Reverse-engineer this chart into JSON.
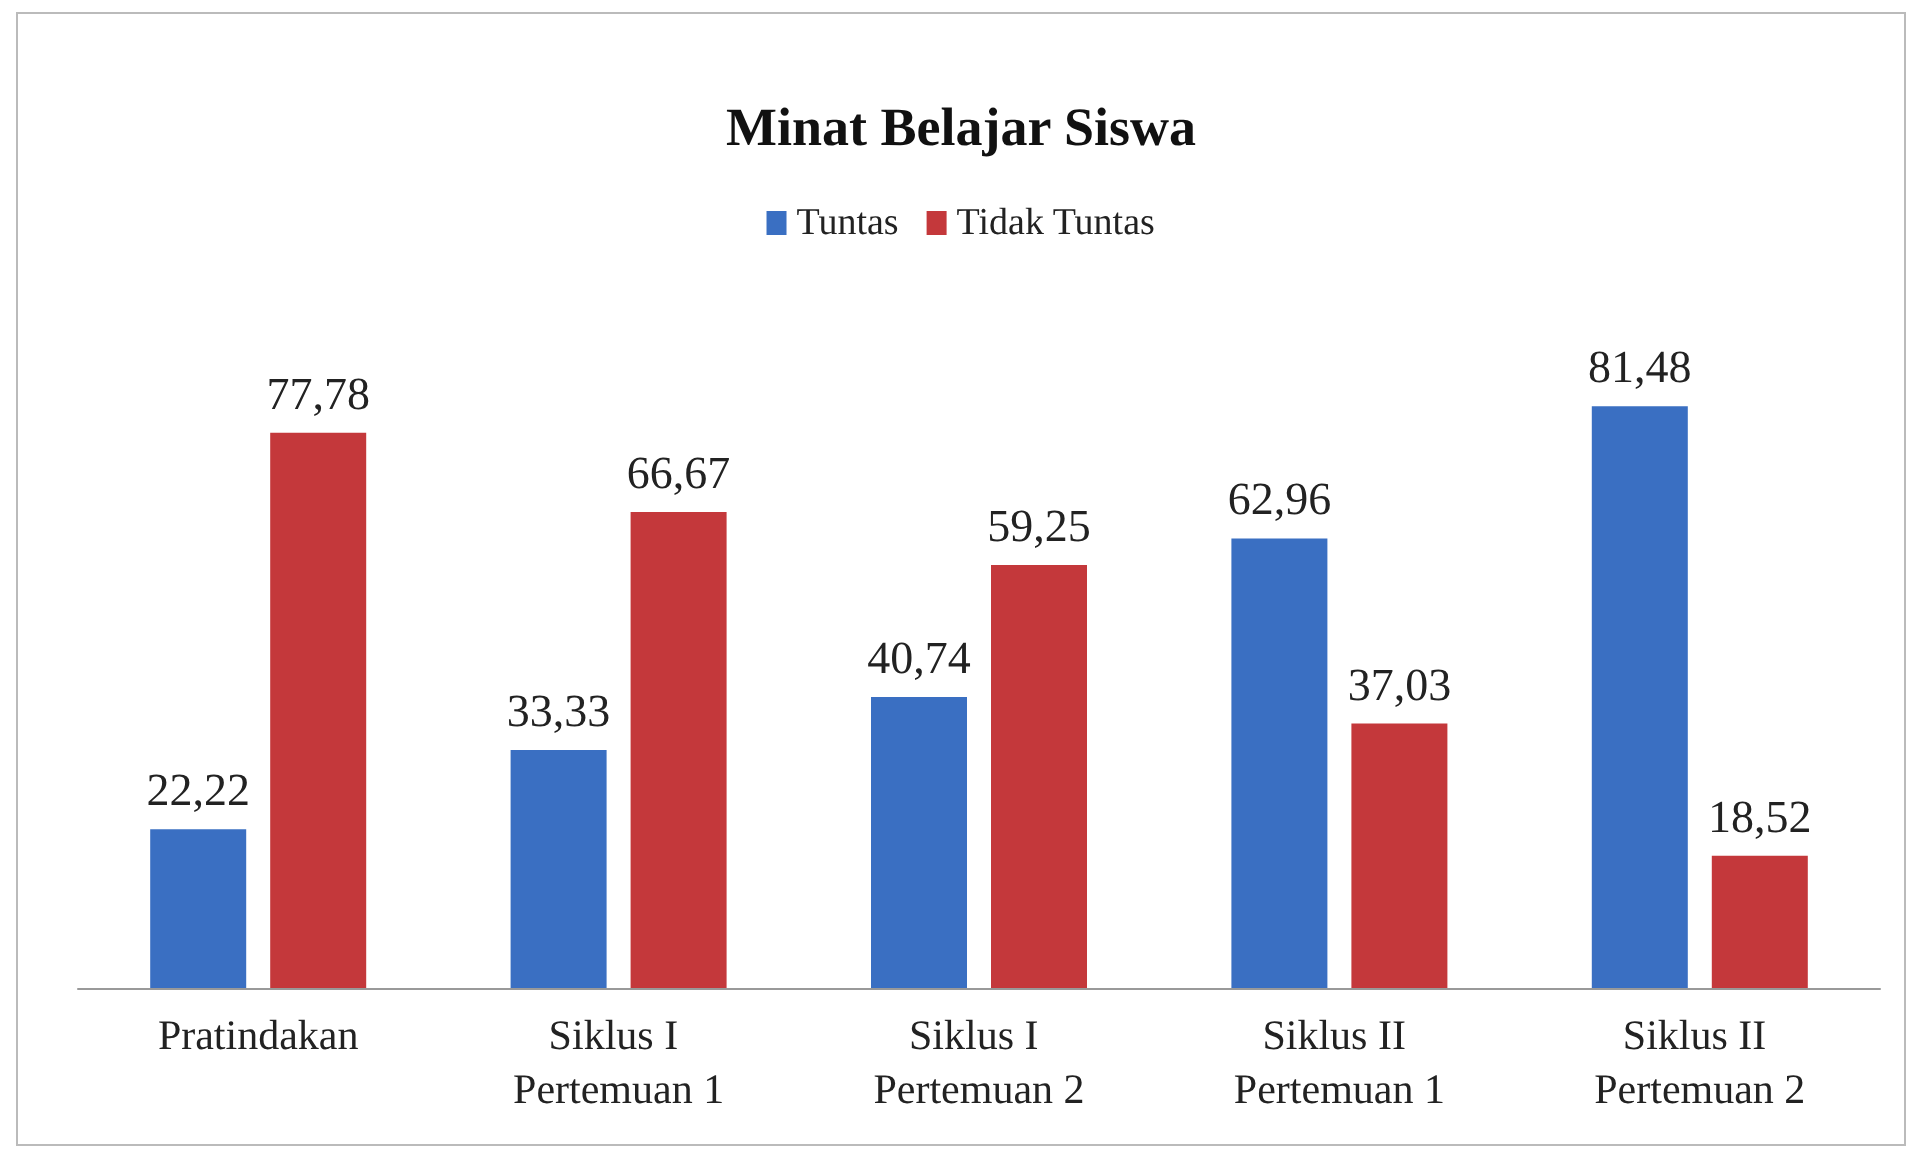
{
  "chart_data": {
    "type": "bar",
    "title": "Minat Belajar Siswa",
    "categories": [
      "Pratindakan",
      "Siklus I Pertemuan 1",
      "Siklus I Pertemuan 2",
      "Siklus II Pertemuan 1",
      "Siklus II Pertemuan 2"
    ],
    "series": [
      {
        "name": "Tuntas",
        "color": "#3a6fc2",
        "values": [
          22.22,
          33.33,
          40.74,
          62.96,
          81.48
        ],
        "value_labels": [
          "22,22",
          "33,33",
          "40,74",
          "62,96",
          "81,48"
        ]
      },
      {
        "name": "Tidak Tuntas",
        "color": "#c4383b",
        "values": [
          77.78,
          66.67,
          59.25,
          37.03,
          18.52
        ],
        "value_labels": [
          "77,78",
          "66,67",
          "59,25",
          "37,03",
          "18,52"
        ]
      }
    ],
    "legend": "top",
    "grid": false
  }
}
